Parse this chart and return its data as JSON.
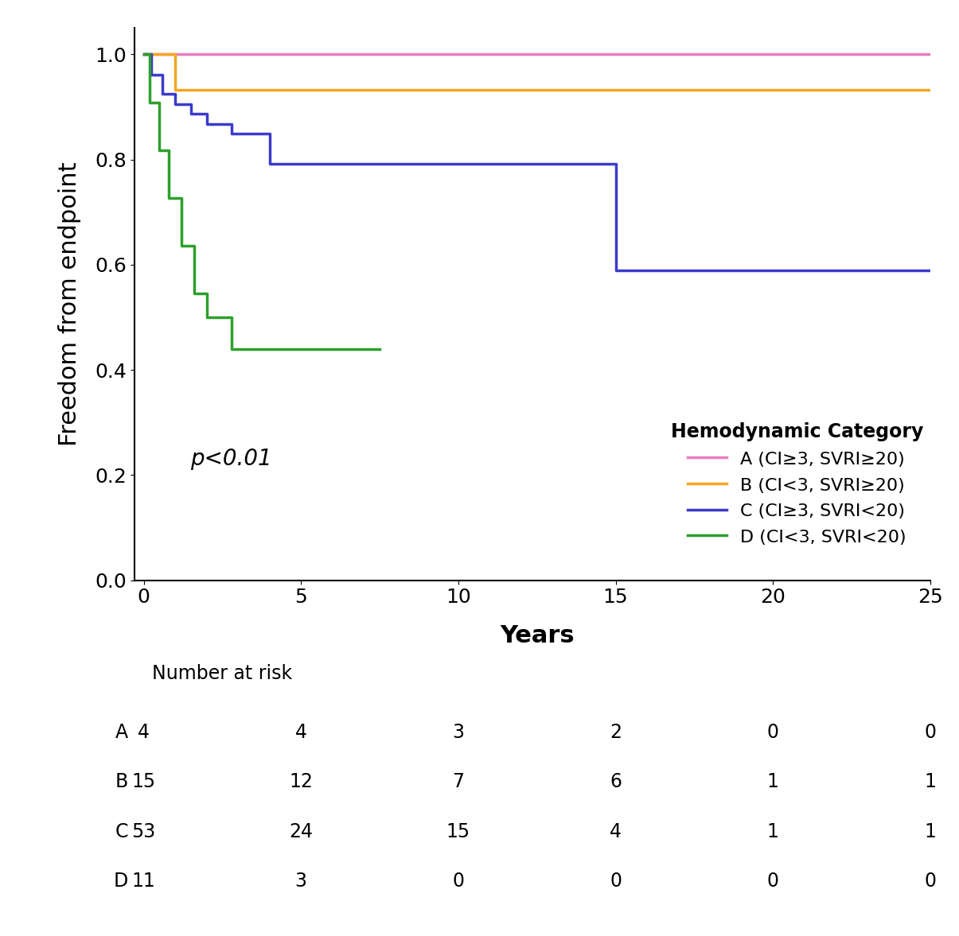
{
  "curves": {
    "A": {
      "color": "#e87cc3",
      "label": "A (CI≥3, SVRI≥20)",
      "x": [
        0,
        25
      ],
      "y": [
        1.0,
        1.0
      ]
    },
    "B": {
      "color": "#f5a623",
      "label": "B (CI<3, SVRI≥20)",
      "x": [
        0,
        1.0,
        1.0,
        25
      ],
      "y": [
        1.0,
        1.0,
        0.933,
        0.933
      ]
    },
    "C": {
      "color": "#3b3bcc",
      "label": "C (CI≥3, SVRI<20)",
      "x": [
        0,
        0.25,
        0.25,
        0.6,
        0.6,
        1.0,
        1.0,
        1.5,
        1.5,
        2.0,
        2.0,
        2.8,
        2.8,
        4.0,
        4.0,
        15.0,
        15.0,
        19.5,
        19.5,
        25
      ],
      "y": [
        1.0,
        1.0,
        0.962,
        0.962,
        0.925,
        0.925,
        0.906,
        0.906,
        0.887,
        0.887,
        0.868,
        0.868,
        0.849,
        0.849,
        0.792,
        0.792,
        0.59,
        0.59,
        0.59,
        0.59
      ]
    },
    "D": {
      "color": "#2ca02c",
      "label": "D (CI<3, SVRI<20)",
      "x": [
        0,
        0.2,
        0.2,
        0.5,
        0.5,
        0.8,
        0.8,
        1.2,
        1.2,
        1.6,
        1.6,
        2.0,
        2.0,
        2.8,
        2.8,
        4.5,
        4.5,
        7.5
      ],
      "y": [
        1.0,
        1.0,
        0.909,
        0.909,
        0.818,
        0.818,
        0.727,
        0.727,
        0.636,
        0.636,
        0.545,
        0.545,
        0.5,
        0.5,
        0.44,
        0.44,
        0.44,
        0.44
      ]
    }
  },
  "ylabel": "Freedom from endpoint",
  "xlabel": "Years",
  "ylim": [
    0.0,
    1.05
  ],
  "xlim": [
    -0.3,
    25
  ],
  "yticks": [
    0.0,
    0.2,
    0.4,
    0.6,
    0.8,
    1.0
  ],
  "xticks": [
    0,
    5,
    10,
    15,
    20,
    25
  ],
  "legend_title": "Hemodynamic Category",
  "pvalue_text": "p<0.01",
  "risk_table": {
    "labels": [
      "A",
      "B",
      "C",
      "D"
    ],
    "timepoints": [
      0,
      5,
      10,
      15,
      20,
      25
    ],
    "values": [
      [
        4,
        4,
        3,
        2,
        0,
        0
      ],
      [
        15,
        12,
        7,
        6,
        1,
        1
      ],
      [
        53,
        24,
        15,
        4,
        1,
        1
      ],
      [
        11,
        3,
        0,
        0,
        0,
        0
      ]
    ],
    "colors": [
      "#e87cc3",
      "#f5a623",
      "#3b3bcc",
      "#2ca02c"
    ]
  },
  "line_width": 2.5,
  "background_color": "#ffffff"
}
